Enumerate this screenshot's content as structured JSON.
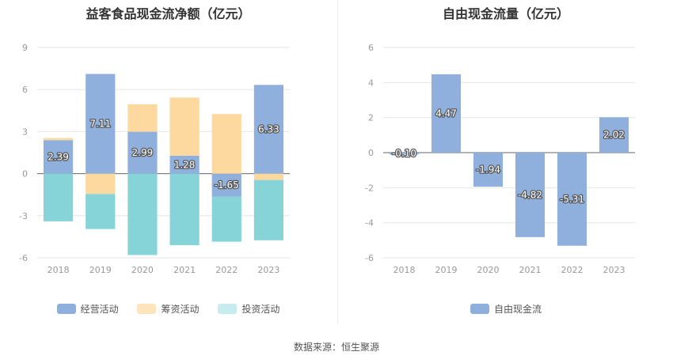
{
  "source_text": "数据来源：恒生聚源",
  "chart_data": [
    {
      "type": "bar",
      "stacked": true,
      "title": "益客食品现金流净额（亿元）",
      "categories": [
        "2018",
        "2019",
        "2020",
        "2021",
        "2022",
        "2023"
      ],
      "ylim": [
        -6,
        9
      ],
      "yticks": [
        "9",
        "6",
        "3",
        "0",
        "-3",
        "-6"
      ],
      "series": [
        {
          "name": "经营活动",
          "color": "#8fb0dc",
          "values": [
            2.39,
            7.11,
            2.99,
            1.28,
            -1.65,
            6.33
          ]
        },
        {
          "name": "筹资活动",
          "color": "#fdd9a0",
          "values": [
            0.15,
            -1.45,
            1.95,
            4.15,
            4.25,
            -0.45
          ]
        },
        {
          "name": "投资活动",
          "color": "#86d4d8",
          "values": [
            -3.4,
            -2.5,
            -5.8,
            -5.1,
            -3.2,
            -4.3
          ]
        }
      ],
      "data_labels": [
        "2.39",
        "7.11",
        "2.99",
        "1.28",
        "-1.65",
        "6.33"
      ],
      "legend_position": "bottom",
      "legend_colors": [
        "#8fb0dc",
        "#fde4bc",
        "#c6ecee"
      ]
    },
    {
      "type": "bar",
      "title": "自由现金流量（亿元）",
      "categories": [
        "2018",
        "2019",
        "2020",
        "2021",
        "2022",
        "2023"
      ],
      "ylim": [
        -6,
        6
      ],
      "yticks": [
        "6",
        "4",
        "2",
        "0",
        "-2",
        "-4",
        "-6"
      ],
      "series": [
        {
          "name": "自由现金流",
          "color": "#8fb0dc",
          "values": [
            -0.1,
            4.47,
            -1.94,
            -4.82,
            -5.31,
            2.02
          ]
        }
      ],
      "data_labels": [
        "-0.10",
        "4.47",
        "-1.94",
        "-4.82",
        "-5.31",
        "2.02"
      ],
      "legend_position": "bottom",
      "legend_colors": [
        "#8fb0dc"
      ]
    }
  ]
}
